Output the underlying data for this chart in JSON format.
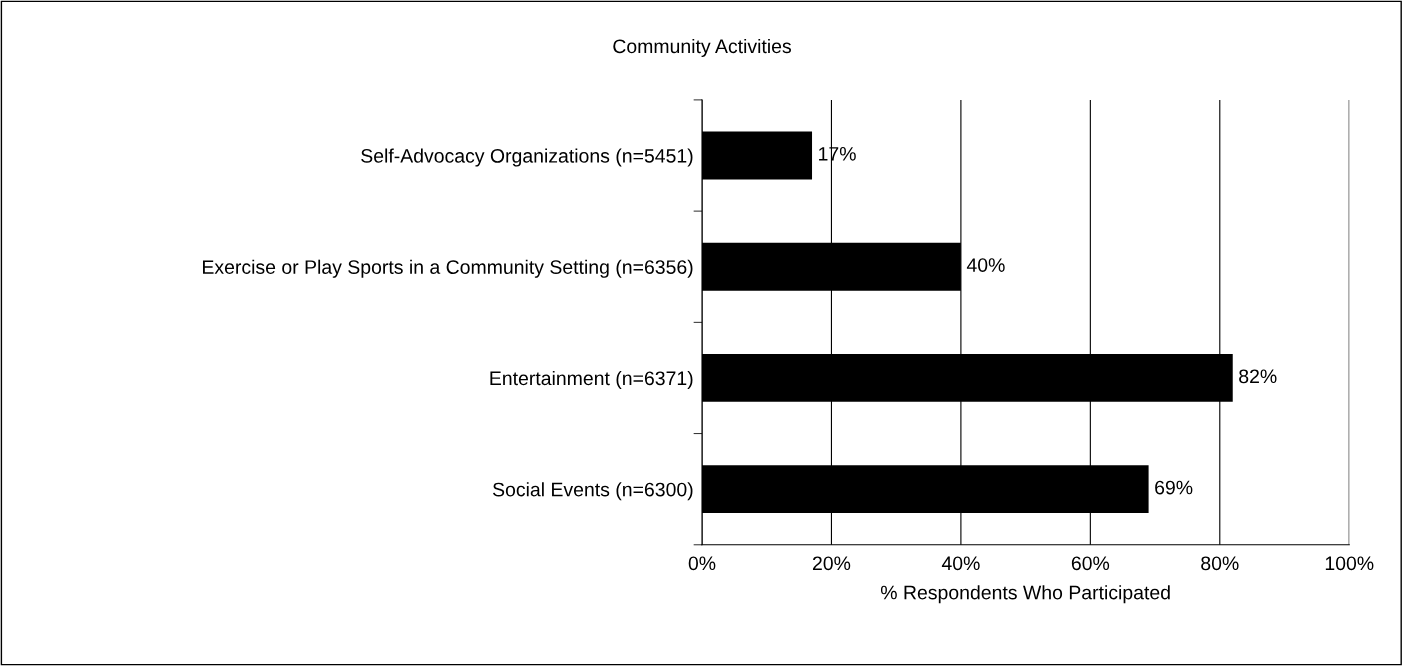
{
  "chart_data": {
    "type": "bar",
    "orientation": "horizontal",
    "title": "Community Activities",
    "xlabel": "% Respondents Who Participated",
    "categories": [
      "Self-Advocacy Organizations (n=5451)",
      "Exercise or Play Sports in a Community Setting (n=6356)",
      "Entertainment (n=6371)",
      "Social Events (n=6300)"
    ],
    "values": [
      17,
      40,
      82,
      69
    ],
    "value_labels": [
      "17%",
      "40%",
      "82%",
      "69%"
    ],
    "color": "#000000",
    "xlim": [
      0,
      100
    ],
    "xticks": [
      {
        "value": 0,
        "label": "0%"
      },
      {
        "value": 20,
        "label": "20%"
      },
      {
        "value": 40,
        "label": "40%"
      },
      {
        "value": 60,
        "label": "60%"
      },
      {
        "value": 80,
        "label": "80%"
      },
      {
        "value": 100,
        "label": "100%"
      }
    ],
    "grid": "x",
    "legend": false
  }
}
